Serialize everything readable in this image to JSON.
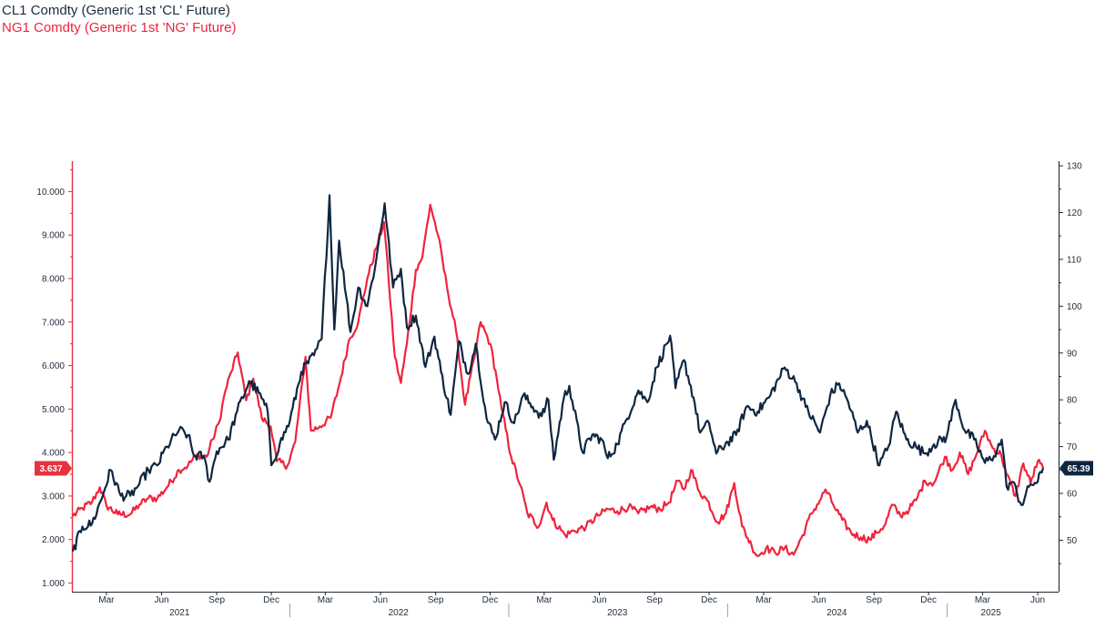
{
  "legend": {
    "cl": "CL1 Comdty (Generic 1st 'CL' Future)",
    "ng": "NG1 Comdty (Generic 1st 'NG' Future)"
  },
  "colors": {
    "cl": "#0f2640",
    "ng": "#f0243c",
    "axis_left": "#e8323f",
    "axis_right": "#1f2a36"
  },
  "chart_data": {
    "type": "line",
    "x_type": "date",
    "x_range": [
      "2021-01-04",
      "2025-06-10"
    ],
    "grid": false,
    "left_axis": {
      "series": "NG1 Comdty (Generic 1st 'NG' Future)",
      "ylim": [
        0.8,
        10.7
      ],
      "ticks": [
        "1.000",
        "2.000",
        "3.000",
        "4.000",
        "5.000",
        "6.000",
        "7.000",
        "8.000",
        "9.000",
        "10.000"
      ],
      "last_value_label": "3.637"
    },
    "right_axis": {
      "series": "CL1 Comdty (Generic 1st 'CL' Future)",
      "ylim": [
        39,
        131
      ],
      "ticks": [
        "50",
        "60",
        "70",
        "80",
        "90",
        "100",
        "110",
        "120",
        "130"
      ],
      "last_value_label": "65.39"
    },
    "month_ticks": [
      {
        "label": "Mar",
        "date": "2021-03-01"
      },
      {
        "label": "Jun",
        "date": "2021-06-01"
      },
      {
        "label": "Sep",
        "date": "2021-09-01"
      },
      {
        "label": "Dec",
        "date": "2021-12-01"
      },
      {
        "label": "Mar",
        "date": "2022-03-01"
      },
      {
        "label": "Jun",
        "date": "2022-06-01"
      },
      {
        "label": "Sep",
        "date": "2022-09-01"
      },
      {
        "label": "Dec",
        "date": "2022-12-01"
      },
      {
        "label": "Mar",
        "date": "2023-03-01"
      },
      {
        "label": "Jun",
        "date": "2023-06-01"
      },
      {
        "label": "Sep",
        "date": "2023-09-01"
      },
      {
        "label": "Dec",
        "date": "2023-12-01"
      },
      {
        "label": "Mar",
        "date": "2024-03-01"
      },
      {
        "label": "Jun",
        "date": "2024-06-01"
      },
      {
        "label": "Sep",
        "date": "2024-09-01"
      },
      {
        "label": "Dec",
        "date": "2024-12-01"
      },
      {
        "label": "Mar",
        "date": "2025-03-01"
      },
      {
        "label": "Jun",
        "date": "2025-06-01"
      }
    ],
    "year_labels": [
      {
        "label": "2021",
        "date": "2021-07-01"
      },
      {
        "label": "2022",
        "date": "2022-07-01"
      },
      {
        "label": "2023",
        "date": "2023-07-01"
      },
      {
        "label": "2024",
        "date": "2024-07-01"
      },
      {
        "label": "2025",
        "date": "2025-03-15"
      }
    ],
    "series": [
      {
        "name": "CL1 Comdty (Generic 1st 'CL' Future)",
        "axis": "right",
        "points": [
          [
            "2021-01-04",
            47.6
          ],
          [
            "2021-01-20",
            52.9
          ],
          [
            "2021-02-05",
            53.5
          ],
          [
            "2021-02-20",
            58.5
          ],
          [
            "2021-03-08",
            65.0
          ],
          [
            "2021-03-25",
            59.5
          ],
          [
            "2021-04-10",
            59.5
          ],
          [
            "2021-04-25",
            62.0
          ],
          [
            "2021-05-10",
            65.0
          ],
          [
            "2021-05-25",
            66.0
          ],
          [
            "2021-06-10",
            70.0
          ],
          [
            "2021-06-30",
            73.5
          ],
          [
            "2021-07-15",
            72.5
          ],
          [
            "2021-07-25",
            68.0
          ],
          [
            "2021-08-10",
            68.0
          ],
          [
            "2021-08-20",
            62.5
          ],
          [
            "2021-09-01",
            69.0
          ],
          [
            "2021-09-20",
            71.5
          ],
          [
            "2021-10-05",
            77.5
          ],
          [
            "2021-10-25",
            84.0
          ],
          [
            "2021-11-10",
            81.5
          ],
          [
            "2021-11-25",
            77.5
          ],
          [
            "2021-12-01",
            66.0
          ],
          [
            "2021-12-15",
            70.5
          ],
          [
            "2022-01-01",
            75.5
          ],
          [
            "2022-01-20",
            86.0
          ],
          [
            "2022-02-10",
            89.5
          ],
          [
            "2022-02-23",
            93.0
          ],
          [
            "2022-03-08",
            123.7
          ],
          [
            "2022-03-16",
            95.0
          ],
          [
            "2022-03-24",
            114.0
          ],
          [
            "2022-04-05",
            102.0
          ],
          [
            "2022-04-12",
            94.5
          ],
          [
            "2022-04-25",
            104.0
          ],
          [
            "2022-05-10",
            100.0
          ],
          [
            "2022-05-25",
            110.0
          ],
          [
            "2022-06-08",
            122.0
          ],
          [
            "2022-06-22",
            104.0
          ],
          [
            "2022-07-05",
            108.0
          ],
          [
            "2022-07-15",
            95.5
          ],
          [
            "2022-07-30",
            98.0
          ],
          [
            "2022-08-15",
            87.0
          ],
          [
            "2022-08-30",
            93.5
          ],
          [
            "2022-09-10",
            86.0
          ],
          [
            "2022-09-26",
            76.8
          ],
          [
            "2022-10-10",
            92.5
          ],
          [
            "2022-10-25",
            85.5
          ],
          [
            "2022-11-07",
            92.0
          ],
          [
            "2022-11-25",
            76.0
          ],
          [
            "2022-12-09",
            71.5
          ],
          [
            "2022-12-25",
            79.5
          ],
          [
            "2023-01-10",
            75.0
          ],
          [
            "2023-01-25",
            81.0
          ],
          [
            "2023-02-10",
            78.5
          ],
          [
            "2023-02-25",
            76.5
          ],
          [
            "2023-03-08",
            80.0
          ],
          [
            "2023-03-17",
            67.2
          ],
          [
            "2023-04-03",
            80.5
          ],
          [
            "2023-04-12",
            83.0
          ],
          [
            "2023-05-04",
            68.8
          ],
          [
            "2023-05-20",
            72.5
          ],
          [
            "2023-06-05",
            71.5
          ],
          [
            "2023-06-15",
            67.5
          ],
          [
            "2023-07-01",
            70.5
          ],
          [
            "2023-07-15",
            75.5
          ],
          [
            "2023-08-05",
            82.0
          ],
          [
            "2023-08-20",
            79.5
          ],
          [
            "2023-09-05",
            87.0
          ],
          [
            "2023-09-27",
            93.7
          ],
          [
            "2023-10-06",
            82.5
          ],
          [
            "2023-10-20",
            88.5
          ],
          [
            "2023-11-05",
            80.5
          ],
          [
            "2023-11-16",
            73.0
          ],
          [
            "2023-12-01",
            75.0
          ],
          [
            "2023-12-13",
            68.5
          ],
          [
            "2024-01-01",
            71.0
          ],
          [
            "2024-01-15",
            72.5
          ],
          [
            "2024-02-01",
            78.5
          ],
          [
            "2024-02-20",
            77.5
          ],
          [
            "2024-03-10",
            80.5
          ],
          [
            "2024-04-05",
            86.9
          ],
          [
            "2024-04-25",
            83.5
          ],
          [
            "2024-05-10",
            78.5
          ],
          [
            "2024-06-03",
            73.0
          ],
          [
            "2024-06-20",
            81.0
          ],
          [
            "2024-07-05",
            83.5
          ],
          [
            "2024-07-20",
            79.5
          ],
          [
            "2024-08-05",
            73.0
          ],
          [
            "2024-08-20",
            75.5
          ],
          [
            "2024-09-10",
            66.0
          ],
          [
            "2024-09-25",
            70.0
          ],
          [
            "2024-10-08",
            77.5
          ],
          [
            "2024-10-25",
            71.5
          ],
          [
            "2024-11-10",
            70.0
          ],
          [
            "2024-11-25",
            68.5
          ],
          [
            "2024-12-10",
            70.5
          ],
          [
            "2024-12-31",
            72.0
          ],
          [
            "2025-01-15",
            80.0
          ],
          [
            "2025-01-30",
            73.5
          ],
          [
            "2025-02-15",
            71.5
          ],
          [
            "2025-03-05",
            66.5
          ],
          [
            "2025-03-20",
            68.0
          ],
          [
            "2025-04-02",
            71.5
          ],
          [
            "2025-04-10",
            61.5
          ],
          [
            "2025-04-20",
            62.5
          ],
          [
            "2025-05-05",
            57.5
          ],
          [
            "2025-05-20",
            62.0
          ],
          [
            "2025-06-01",
            62.5
          ],
          [
            "2025-06-10",
            65.39
          ]
        ]
      },
      {
        "name": "NG1 Comdty (Generic 1st 'NG' Future)",
        "axis": "left",
        "points": [
          [
            "2021-01-04",
            2.54
          ],
          [
            "2021-01-20",
            2.72
          ],
          [
            "2021-02-05",
            2.86
          ],
          [
            "2021-02-18",
            3.2
          ],
          [
            "2021-03-01",
            2.78
          ],
          [
            "2021-03-20",
            2.58
          ],
          [
            "2021-04-10",
            2.58
          ],
          [
            "2021-04-25",
            2.8
          ],
          [
            "2021-05-10",
            2.95
          ],
          [
            "2021-05-25",
            2.95
          ],
          [
            "2021-06-10",
            3.2
          ],
          [
            "2021-06-30",
            3.6
          ],
          [
            "2021-07-15",
            3.7
          ],
          [
            "2021-07-30",
            3.95
          ],
          [
            "2021-08-15",
            3.9
          ],
          [
            "2021-08-25",
            4.3
          ],
          [
            "2021-09-05",
            4.7
          ],
          [
            "2021-09-15",
            5.4
          ],
          [
            "2021-09-25",
            5.85
          ],
          [
            "2021-10-06",
            6.3
          ],
          [
            "2021-10-20",
            5.2
          ],
          [
            "2021-11-01",
            5.7
          ],
          [
            "2021-11-15",
            4.8
          ],
          [
            "2021-11-30",
            4.6
          ],
          [
            "2021-12-10",
            3.8
          ],
          [
            "2021-12-28",
            3.7
          ],
          [
            "2022-01-10",
            4.25
          ],
          [
            "2022-01-27",
            6.2
          ],
          [
            "2022-02-05",
            4.5
          ],
          [
            "2022-02-20",
            4.6
          ],
          [
            "2022-03-10",
            4.8
          ],
          [
            "2022-03-25",
            5.6
          ],
          [
            "2022-04-10",
            6.6
          ],
          [
            "2022-04-25",
            7.0
          ],
          [
            "2022-05-10",
            8.0
          ],
          [
            "2022-05-25",
            8.7
          ],
          [
            "2022-06-07",
            9.3
          ],
          [
            "2022-06-15",
            7.9
          ],
          [
            "2022-06-25",
            6.2
          ],
          [
            "2022-07-05",
            5.6
          ],
          [
            "2022-07-15",
            6.5
          ],
          [
            "2022-07-30",
            8.2
          ],
          [
            "2022-08-10",
            8.5
          ],
          [
            "2022-08-23",
            9.7
          ],
          [
            "2022-09-05",
            9.0
          ],
          [
            "2022-09-20",
            7.8
          ],
          [
            "2022-10-05",
            6.8
          ],
          [
            "2022-10-20",
            5.1
          ],
          [
            "2022-11-05",
            6.2
          ],
          [
            "2022-11-15",
            7.0
          ],
          [
            "2022-12-01",
            6.5
          ],
          [
            "2022-12-12",
            5.7
          ],
          [
            "2022-12-20",
            5.0
          ],
          [
            "2023-01-05",
            3.9
          ],
          [
            "2023-01-20",
            3.25
          ],
          [
            "2023-02-01",
            2.6
          ],
          [
            "2023-02-20",
            2.3
          ],
          [
            "2023-03-05",
            2.85
          ],
          [
            "2023-03-15",
            2.45
          ],
          [
            "2023-04-05",
            2.1
          ],
          [
            "2023-04-20",
            2.2
          ],
          [
            "2023-05-10",
            2.3
          ],
          [
            "2023-05-30",
            2.55
          ],
          [
            "2023-06-15",
            2.7
          ],
          [
            "2023-07-01",
            2.65
          ],
          [
            "2023-07-20",
            2.75
          ],
          [
            "2023-08-05",
            2.6
          ],
          [
            "2023-08-25",
            2.75
          ],
          [
            "2023-09-10",
            2.7
          ],
          [
            "2023-09-25",
            2.85
          ],
          [
            "2023-10-10",
            3.35
          ],
          [
            "2023-10-20",
            3.15
          ],
          [
            "2023-11-01",
            3.6
          ],
          [
            "2023-11-15",
            3.1
          ],
          [
            "2023-11-28",
            2.9
          ],
          [
            "2023-12-15",
            2.4
          ],
          [
            "2023-12-29",
            2.6
          ],
          [
            "2024-01-12",
            3.3
          ],
          [
            "2024-01-25",
            2.3
          ],
          [
            "2024-02-10",
            1.85
          ],
          [
            "2024-02-20",
            1.62
          ],
          [
            "2024-03-05",
            1.8
          ],
          [
            "2024-03-20",
            1.7
          ],
          [
            "2024-04-05",
            1.8
          ],
          [
            "2024-04-20",
            1.65
          ],
          [
            "2024-05-05",
            2.1
          ],
          [
            "2024-05-20",
            2.6
          ],
          [
            "2024-06-05",
            2.95
          ],
          [
            "2024-06-12",
            3.15
          ],
          [
            "2024-06-25",
            2.8
          ],
          [
            "2024-07-10",
            2.45
          ],
          [
            "2024-07-25",
            2.15
          ],
          [
            "2024-08-10",
            2.05
          ],
          [
            "2024-08-25",
            2.0
          ],
          [
            "2024-09-05",
            2.15
          ],
          [
            "2024-09-20",
            2.35
          ],
          [
            "2024-10-01",
            2.8
          ],
          [
            "2024-10-15",
            2.55
          ],
          [
            "2024-10-30",
            2.7
          ],
          [
            "2024-11-10",
            2.9
          ],
          [
            "2024-11-25",
            3.35
          ],
          [
            "2024-12-10",
            3.3
          ],
          [
            "2024-12-28",
            3.9
          ],
          [
            "2025-01-10",
            3.6
          ],
          [
            "2025-01-22",
            4.0
          ],
          [
            "2025-02-05",
            3.5
          ],
          [
            "2025-02-20",
            4.0
          ],
          [
            "2025-03-05",
            4.5
          ],
          [
            "2025-03-18",
            4.1
          ],
          [
            "2025-04-01",
            3.95
          ],
          [
            "2025-04-10",
            3.5
          ],
          [
            "2025-04-25",
            3.0
          ],
          [
            "2025-05-08",
            3.75
          ],
          [
            "2025-05-20",
            3.3
          ],
          [
            "2025-06-01",
            3.8
          ],
          [
            "2025-06-10",
            3.637
          ]
        ]
      }
    ]
  }
}
